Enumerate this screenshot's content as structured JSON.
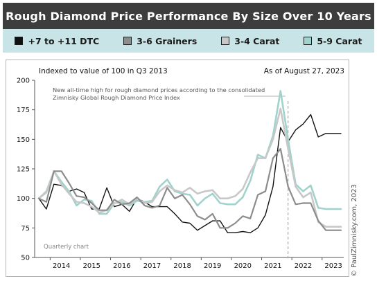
{
  "title": "Rough Diamond Price Performance By Size Over 10 Years",
  "legend": [
    {
      "label": "+7 to +11 DTC",
      "color": "#111111"
    },
    {
      "label": "3-6 Grainers",
      "color": "#8c8c8c"
    },
    {
      "label": "3-4 Carat",
      "color": "#c8c8c8"
    },
    {
      "label": "5-9 Carat",
      "color": "#9fd3cc"
    }
  ],
  "subtitle_left": "Indexed to value of 100 in Q3 2013",
  "subtitle_right": "As of August 27, 2023",
  "annotation": "New all-time high for rough diamond prices according to the consolidated Zimnisky Global Rough Diamond Price Index",
  "footnote": "Quarterly chart",
  "credit": "© PaulZimnisky.com, 2023",
  "chart_data": {
    "type": "line",
    "x": [
      "2013-Q3",
      "2013-Q4",
      "2014-Q1",
      "2014-Q2",
      "2014-Q3",
      "2014-Q4",
      "2015-Q1",
      "2015-Q2",
      "2015-Q3",
      "2015-Q4",
      "2016-Q1",
      "2016-Q2",
      "2016-Q3",
      "2016-Q4",
      "2017-Q1",
      "2017-Q2",
      "2017-Q3",
      "2017-Q4",
      "2018-Q1",
      "2018-Q2",
      "2018-Q3",
      "2018-Q4",
      "2019-Q1",
      "2019-Q2",
      "2019-Q3",
      "2019-Q4",
      "2020-Q1",
      "2020-Q2",
      "2020-Q3",
      "2020-Q4",
      "2021-Q1",
      "2021-Q2",
      "2021-Q3",
      "2021-Q4",
      "2022-Q1",
      "2022-Q2",
      "2022-Q3",
      "2022-Q4",
      "2023-Q1",
      "2023-Q2",
      "2023-Q3"
    ],
    "x_tick_labels": [
      "2014",
      "2015",
      "2016",
      "2017",
      "2018",
      "2019",
      "2020",
      "2021",
      "2022",
      "2023"
    ],
    "y_ticks": [
      50,
      75,
      100,
      125,
      150,
      175,
      200
    ],
    "ylim": [
      50,
      200
    ],
    "grid": false,
    "marker_line_x": "2021-Q4",
    "series": [
      {
        "name": "+7 to +11 DTC",
        "color": "#111111",
        "width": 1.4,
        "values": [
          100,
          91,
          112,
          111,
          106,
          108,
          105,
          91,
          91,
          109,
          93,
          95,
          89,
          100,
          97,
          93,
          93,
          93,
          87,
          80,
          79,
          73,
          77,
          81,
          81,
          71,
          71,
          72,
          71,
          75,
          86,
          110,
          160,
          148,
          158,
          163,
          171,
          152,
          155,
          155,
          155
        ]
      },
      {
        "name": "5-9 Carat",
        "color": "#9fd3cc",
        "width": 2.6,
        "values": [
          100,
          106,
          123,
          114,
          106,
          94,
          99,
          98,
          87,
          87,
          96,
          97,
          94,
          98,
          97,
          98,
          110,
          116,
          106,
          104,
          103,
          94,
          100,
          104,
          96,
          95,
          95,
          101,
          115,
          137,
          134,
          153,
          191,
          150,
          112,
          106,
          111,
          92,
          91,
          91,
          91
        ]
      },
      {
        "name": "3-4 Carat",
        "color": "#c8c8c8",
        "width": 2.6,
        "values": [
          100,
          105,
          123,
          112,
          104,
          97,
          96,
          93,
          88,
          90,
          96,
          99,
          95,
          100,
          96,
          97,
          106,
          111,
          107,
          105,
          109,
          104,
          106,
          107,
          100,
          100,
          102,
          108,
          122,
          134,
          134,
          150,
          176,
          142,
          110,
          101,
          105,
          80,
          76,
          76,
          76
        ]
      },
      {
        "name": "3-6 Grainers",
        "color": "#8c8c8c",
        "width": 2.2,
        "values": [
          100,
          97,
          123,
          123,
          113,
          102,
          101,
          96,
          90,
          90,
          99,
          95,
          96,
          101,
          94,
          92,
          94,
          109,
          100,
          103,
          95,
          85,
          82,
          87,
          75,
          75,
          79,
          85,
          83,
          103,
          106,
          134,
          142,
          110,
          95,
          96,
          96,
          81,
          73,
          73,
          73
        ]
      }
    ]
  }
}
